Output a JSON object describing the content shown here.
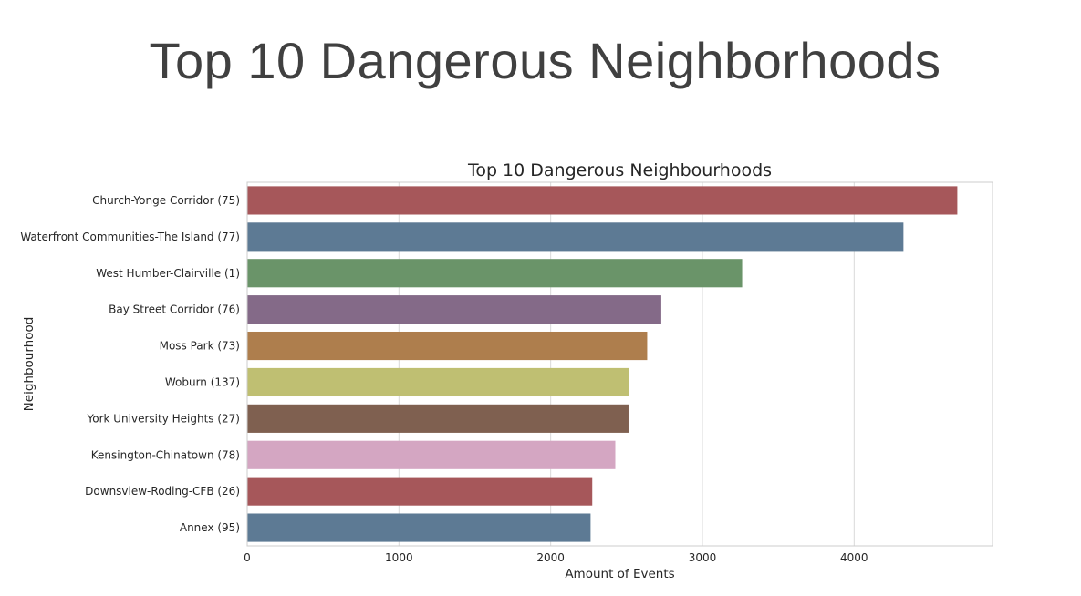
{
  "slide": {
    "title": "Top 10 Dangerous Neighborhoods"
  },
  "chart_data": {
    "type": "bar",
    "orientation": "horizontal",
    "title": "Top 10 Dangerous Neighbourhoods",
    "xlabel": "Amount of Events",
    "ylabel": "Neighbourhood",
    "categories": [
      "Church-Yonge Corridor (75)",
      "Waterfront Communities-The Island (77)",
      "West Humber-Clairville (1)",
      "Bay Street Corridor (76)",
      "Moss Park (73)",
      "Woburn (137)",
      "York University Heights (27)",
      "Kensington-Chinatown (78)",
      "Downsview-Roding-CFB (26)",
      "Annex (95)"
    ],
    "values": [
      4680,
      4325,
      3262,
      2729,
      2636,
      2517,
      2513,
      2426,
      2274,
      2263
    ],
    "colors": [
      "#a6575a",
      "#5d7a94",
      "#6a9469",
      "#846a88",
      "#ae7e4d",
      "#bfbf72",
      "#7f6050",
      "#d4a6c2",
      "#a6575a",
      "#5d7a94"
    ],
    "xticks": [
      "0",
      "1000",
      "2000",
      "3000",
      "4000"
    ],
    "xlim": [
      0,
      4912
    ],
    "grid": true,
    "gridColor": "#d9d9d9"
  }
}
